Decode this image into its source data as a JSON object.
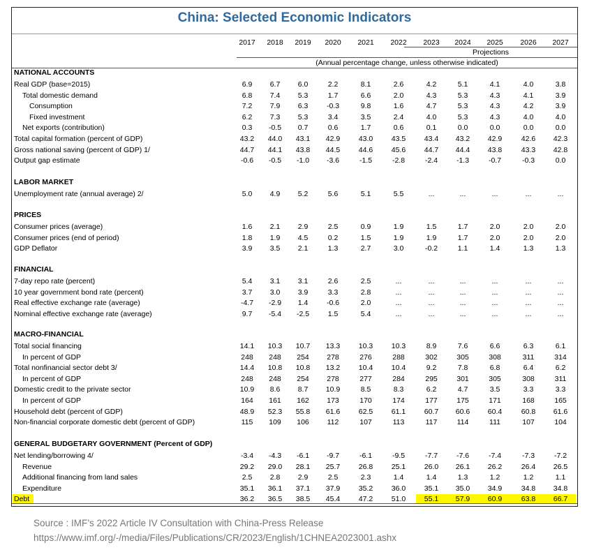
{
  "title": "China: Selected Economic Indicators",
  "years": [
    "2017",
    "2018",
    "2019",
    "2020",
    "2021",
    "2022",
    "2023",
    "2024",
    "2025",
    "2026",
    "2027"
  ],
  "projections_label": "Projections",
  "unit_note": "(Annual percentage change, unless otherwise indicated)",
  "highlight_color": "#fff700",
  "sections": [
    {
      "title": "NATIONAL ACCOUNTS",
      "rows": [
        {
          "label": "Real GDP (base=2015)",
          "indent": 0,
          "values": [
            "6.9",
            "6.7",
            "6.0",
            "2.2",
            "8.1",
            "2.6",
            "4.2",
            "5.1",
            "4.1",
            "4.0",
            "3.8"
          ]
        },
        {
          "label": "Total domestic demand",
          "indent": 1,
          "values": [
            "6.8",
            "7.4",
            "5.3",
            "1.7",
            "6.6",
            "2.0",
            "4.3",
            "5.3",
            "4.3",
            "4.1",
            "3.9"
          ]
        },
        {
          "label": "Consumption",
          "indent": 2,
          "values": [
            "7.2",
            "7.9",
            "6.3",
            "-0.3",
            "9.8",
            "1.6",
            "4.7",
            "5.3",
            "4.3",
            "4.2",
            "3.9"
          ]
        },
        {
          "label": "Fixed investment",
          "indent": 2,
          "values": [
            "6.2",
            "7.3",
            "5.3",
            "3.4",
            "3.5",
            "2.4",
            "4.0",
            "5.3",
            "4.3",
            "4.0",
            "4.0"
          ]
        },
        {
          "label": "Net exports (contribution)",
          "indent": 1,
          "values": [
            "0.3",
            "-0.5",
            "0.7",
            "0.6",
            "1.7",
            "0.6",
            "0.1",
            "0.0",
            "0.0",
            "0.0",
            "0.0"
          ]
        },
        {
          "label": "Total capital formation (percent of GDP)",
          "indent": 0,
          "values": [
            "43.2",
            "44.0",
            "43.1",
            "42.9",
            "43.0",
            "43.5",
            "43.4",
            "43.2",
            "42.9",
            "42.6",
            "42.3"
          ]
        },
        {
          "label": "Gross national saving (percent of GDP) 1/",
          "indent": 0,
          "values": [
            "44.7",
            "44.1",
            "43.8",
            "44.5",
            "44.6",
            "45.6",
            "44.7",
            "44.4",
            "43.8",
            "43.3",
            "42.8"
          ]
        },
        {
          "label": "Output gap estimate",
          "indent": 0,
          "values": [
            "-0.6",
            "-0.5",
            "-1.0",
            "-3.6",
            "-1.5",
            "-2.8",
            "-2.4",
            "-1.3",
            "-0.7",
            "-0.3",
            "0.0"
          ]
        }
      ]
    },
    {
      "title": "LABOR MARKET",
      "rows": [
        {
          "label": "Unemployment rate (annual average) 2/",
          "indent": 0,
          "values": [
            "5.0",
            "4.9",
            "5.2",
            "5.6",
            "5.1",
            "5.5",
            "...",
            "...",
            "...",
            "...",
            "..."
          ]
        }
      ]
    },
    {
      "title": "PRICES",
      "rows": [
        {
          "label": "Consumer prices (average)",
          "indent": 0,
          "values": [
            "1.6",
            "2.1",
            "2.9",
            "2.5",
            "0.9",
            "1.9",
            "1.5",
            "1.7",
            "2.0",
            "2.0",
            "2.0"
          ]
        },
        {
          "label": "Consumer prices (end of period)",
          "indent": 0,
          "values": [
            "1.8",
            "1.9",
            "4.5",
            "0.2",
            "1.5",
            "1.9",
            "1.9",
            "1.7",
            "2.0",
            "2.0",
            "2.0"
          ]
        },
        {
          "label": "GDP Deflator",
          "indent": 0,
          "values": [
            "3.9",
            "3.5",
            "2.1",
            "1.3",
            "2.7",
            "3.0",
            "-0.2",
            "1.1",
            "1.4",
            "1.3",
            "1.3"
          ]
        }
      ]
    },
    {
      "title": "FINANCIAL",
      "rows": [
        {
          "label": "7-day repo rate (percent)",
          "indent": 0,
          "values": [
            "5.4",
            "3.1",
            "3.1",
            "2.6",
            "2.5",
            "...",
            "...",
            "...",
            "...",
            "...",
            "..."
          ]
        },
        {
          "label": "10 year government bond rate (percent)",
          "indent": 0,
          "values": [
            "3.7",
            "3.0",
            "3.9",
            "3.3",
            "2.8",
            "...",
            "...",
            "...",
            "...",
            "...",
            "..."
          ]
        },
        {
          "label": "Real effective exchange rate (average)",
          "indent": 0,
          "values": [
            "-4.7",
            "-2.9",
            "1.4",
            "-0.6",
            "2.0",
            "...",
            "...",
            "...",
            "...",
            "...",
            "..."
          ]
        },
        {
          "label": "Nominal effective exchange rate (average)",
          "indent": 0,
          "values": [
            "9.7",
            "-5.4",
            "-2.5",
            "1.5",
            "5.4",
            "...",
            "...",
            "...",
            "...",
            "...",
            "..."
          ]
        }
      ]
    },
    {
      "title": "MACRO-FINANCIAL",
      "rows": [
        {
          "label": "Total social financing",
          "indent": 0,
          "values": [
            "14.1",
            "10.3",
            "10.7",
            "13.3",
            "10.3",
            "10.3",
            "8.9",
            "7.6",
            "6.6",
            "6.3",
            "6.1"
          ]
        },
        {
          "label": "In percent of GDP",
          "indent": 1,
          "values": [
            "248",
            "248",
            "254",
            "278",
            "276",
            "288",
            "302",
            "305",
            "308",
            "311",
            "314"
          ]
        },
        {
          "label": "Total nonfinancial sector debt 3/",
          "indent": 0,
          "values": [
            "14.4",
            "10.8",
            "10.8",
            "13.2",
            "10.4",
            "10.4",
            "9.2",
            "7.8",
            "6.8",
            "6.4",
            "6.2"
          ]
        },
        {
          "label": "In percent of GDP",
          "indent": 1,
          "values": [
            "248",
            "248",
            "254",
            "278",
            "277",
            "284",
            "295",
            "301",
            "305",
            "308",
            "311"
          ]
        },
        {
          "label": "Domestic credit to the private sector",
          "indent": 0,
          "values": [
            "10.9",
            "8.6",
            "8.7",
            "10.9",
            "8.5",
            "8.3",
            "6.2",
            "4.7",
            "3.5",
            "3.3",
            "3.3"
          ]
        },
        {
          "label": "In percent of GDP",
          "indent": 1,
          "values": [
            "164",
            "161",
            "162",
            "173",
            "170",
            "174",
            "177",
            "175",
            "171",
            "168",
            "165"
          ]
        },
        {
          "label": "Household debt (percent of GDP)",
          "indent": 0,
          "values": [
            "48.9",
            "52.3",
            "55.8",
            "61.6",
            "62.5",
            "61.1",
            "60.7",
            "60.6",
            "60.4",
            "60.8",
            "61.6"
          ]
        },
        {
          "label": "Non-financial corporate domestic debt (percent of GDP)",
          "indent": 0,
          "values": [
            "115",
            "109",
            "106",
            "112",
            "107",
            "113",
            "117",
            "114",
            "111",
            "107",
            "104"
          ]
        }
      ]
    },
    {
      "title": "GENERAL BUDGETARY GOVERNMENT (Percent of GDP)",
      "rows": [
        {
          "label": "Net lending/borrowing 4/",
          "indent": 0,
          "values": [
            "-3.4",
            "-4.3",
            "-6.1",
            "-9.7",
            "-6.1",
            "-9.5",
            "-7.7",
            "-7.6",
            "-7.4",
            "-7.3",
            "-7.2"
          ]
        },
        {
          "label": "Revenue",
          "indent": 1,
          "values": [
            "29.2",
            "29.0",
            "28.1",
            "25.7",
            "26.8",
            "25.1",
            "26.0",
            "26.1",
            "26.2",
            "26.4",
            "26.5"
          ]
        },
        {
          "label": "Additional financing from land sales",
          "indent": 1,
          "values": [
            "2.5",
            "2.8",
            "2.9",
            "2.5",
            "2.3",
            "1.4",
            "1.4",
            "1.3",
            "1.2",
            "1.2",
            "1.1"
          ]
        },
        {
          "label": "Expenditure",
          "indent": 1,
          "values": [
            "35.1",
            "36.1",
            "37.1",
            "37.9",
            "35.2",
            "36.0",
            "35.1",
            "35.0",
            "34.9",
            "34.8",
            "34.8"
          ]
        },
        {
          "label": "Debt",
          "indent": 0,
          "highlight": true,
          "values": [
            "36.2",
            "36.5",
            "38.5",
            "45.4",
            "47.2",
            "51.0",
            "55.1",
            "57.9",
            "60.9",
            "63.8",
            "66.7"
          ]
        }
      ]
    }
  ],
  "source": {
    "line1": "Source : IMF’s 2022 Article IV Consultation with China-Press Release",
    "line2": "https://www.imf.org/-/media/Files/Publications/CR/2023/English/1CHNEA2023001.ashx"
  }
}
